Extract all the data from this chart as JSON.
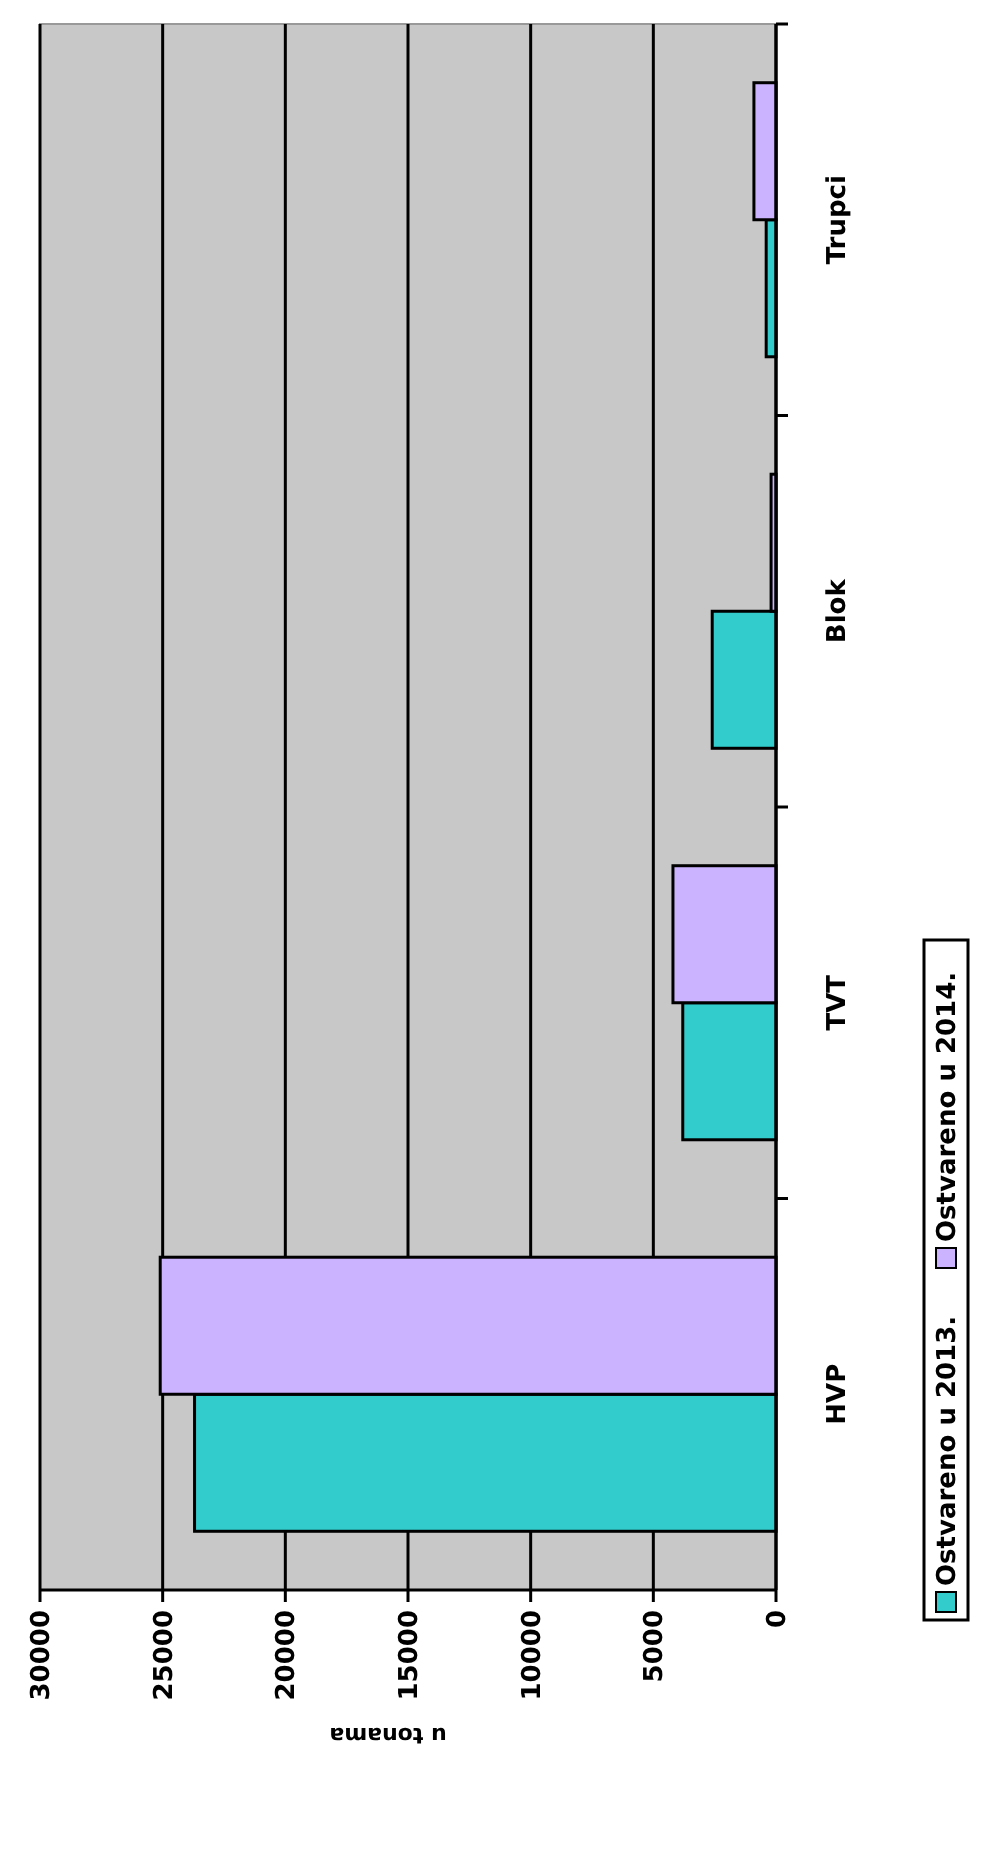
{
  "chart_data": {
    "type": "bar",
    "orientation": "horizontal",
    "xlabel": "u tonama",
    "categories": [
      "Trupci",
      "Blok",
      "TVT",
      "HVP"
    ],
    "series": [
      {
        "name": "Ostvareno u 2013.",
        "color": "#33cccc",
        "values": [
          400,
          2600,
          3800,
          23700
        ]
      },
      {
        "name": "Ostvareno u 2014.",
        "color": "#ccb3ff",
        "values": [
          900,
          200,
          4200,
          25100
        ]
      }
    ],
    "xlim": [
      30000,
      0
    ],
    "xticks": [
      0,
      5000,
      10000,
      15000,
      20000,
      25000,
      30000
    ],
    "grid": "x",
    "legend": "right"
  }
}
